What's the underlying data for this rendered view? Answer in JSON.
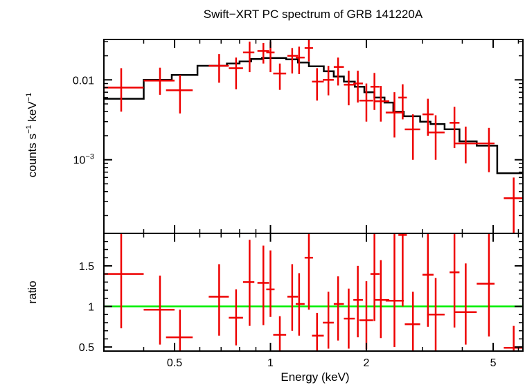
{
  "chart_data": [
    {
      "type": "scatter",
      "panel": "spectrum",
      "title": "Swift−XRT PC spectrum of GRB 141220A",
      "ylabel_parts": [
        "counts s",
        "−1",
        " keV",
        "−1"
      ],
      "xlabel": "",
      "xscale": "log",
      "yscale": "log",
      "xlim": [
        0.3,
        6.2
      ],
      "ylim": [
        0.00012,
        0.032
      ],
      "yticks": [
        {
          "value": 0.01,
          "label": "0.01"
        }
      ],
      "ytick_pow": {
        "value": 0.001,
        "base": "10",
        "exp": "−3"
      },
      "grid": false,
      "colors": {
        "data": "#ee0000",
        "model": "#000000"
      },
      "data_points": [
        {
          "x": 0.34,
          "xlo": 0.3,
          "xhi": 0.4,
          "y": 0.008,
          "yerr": [
            0.004,
            0.014
          ]
        },
        {
          "x": 0.45,
          "xlo": 0.4,
          "xhi": 0.5,
          "y": 0.0098,
          "yerr": [
            0.0065,
            0.0142
          ]
        },
        {
          "x": 0.52,
          "xlo": 0.47,
          "xhi": 0.57,
          "y": 0.0074,
          "yerr": [
            0.0038,
            0.0115
          ]
        },
        {
          "x": 0.69,
          "xlo": 0.64,
          "xhi": 0.74,
          "y": 0.015,
          "yerr": [
            0.0092,
            0.021
          ]
        },
        {
          "x": 0.78,
          "xlo": 0.74,
          "xhi": 0.82,
          "y": 0.014,
          "yerr": [
            0.0076,
            0.019
          ]
        },
        {
          "x": 0.86,
          "xlo": 0.82,
          "xhi": 0.89,
          "y": 0.022,
          "yerr": [
            0.0125,
            0.03
          ]
        },
        {
          "x": 0.95,
          "xlo": 0.91,
          "xhi": 0.99,
          "y": 0.023,
          "yerr": [
            0.016,
            0.029
          ]
        },
        {
          "x": 1.0,
          "xlo": 0.97,
          "xhi": 1.03,
          "y": 0.022,
          "yerr": [
            0.0125,
            0.03
          ]
        },
        {
          "x": 1.07,
          "xlo": 1.02,
          "xhi": 1.12,
          "y": 0.012,
          "yerr": [
            0.0075,
            0.016
          ]
        },
        {
          "x": 1.17,
          "xlo": 1.13,
          "xhi": 1.22,
          "y": 0.02,
          "yerr": [
            0.012,
            0.025
          ]
        },
        {
          "x": 1.23,
          "xlo": 1.2,
          "xhi": 1.28,
          "y": 0.019,
          "yerr": [
            0.0118,
            0.026
          ]
        },
        {
          "x": 1.32,
          "xlo": 1.28,
          "xhi": 1.36,
          "y": 0.025,
          "yerr": [
            0.017,
            0.032
          ]
        },
        {
          "x": 1.4,
          "xlo": 1.35,
          "xhi": 1.47,
          "y": 0.0095,
          "yerr": [
            0.0055,
            0.014
          ]
        },
        {
          "x": 1.52,
          "xlo": 1.46,
          "xhi": 1.58,
          "y": 0.01,
          "yerr": [
            0.0064,
            0.015
          ]
        },
        {
          "x": 1.63,
          "xlo": 1.58,
          "xhi": 1.7,
          "y": 0.0145,
          "yerr": [
            0.0085,
            0.019
          ]
        },
        {
          "x": 1.76,
          "xlo": 1.7,
          "xhi": 1.84,
          "y": 0.0087,
          "yerr": [
            0.0048,
            0.013
          ]
        },
        {
          "x": 1.88,
          "xlo": 1.82,
          "xhi": 1.95,
          "y": 0.009,
          "yerr": [
            0.0052,
            0.013
          ]
        },
        {
          "x": 2.0,
          "xlo": 1.9,
          "xhi": 2.1,
          "y": 0.0055,
          "yerr": [
            0.003,
            0.009
          ]
        },
        {
          "x": 2.12,
          "xlo": 2.06,
          "xhi": 2.2,
          "y": 0.0082,
          "yerr": [
            0.0042,
            0.0122
          ]
        },
        {
          "x": 2.22,
          "xlo": 2.12,
          "xhi": 2.36,
          "y": 0.0054,
          "yerr": [
            0.003,
            0.0084
          ]
        },
        {
          "x": 2.45,
          "xlo": 2.3,
          "xhi": 2.62,
          "y": 0.0039,
          "yerr": [
            0.0019,
            0.007
          ]
        },
        {
          "x": 2.6,
          "xlo": 2.52,
          "xhi": 2.68,
          "y": 0.006,
          "yerr": [
            0.0032,
            0.0088
          ]
        },
        {
          "x": 2.8,
          "xlo": 2.64,
          "xhi": 2.95,
          "y": 0.0024,
          "yerr": [
            0.001,
            0.0037
          ]
        },
        {
          "x": 3.12,
          "xlo": 3.0,
          "xhi": 3.25,
          "y": 0.0037,
          "yerr": [
            0.002,
            0.0058
          ]
        },
        {
          "x": 3.3,
          "xlo": 3.1,
          "xhi": 3.52,
          "y": 0.0022,
          "yerr": [
            0.001,
            0.0036
          ]
        },
        {
          "x": 3.78,
          "xlo": 3.65,
          "xhi": 3.92,
          "y": 0.0029,
          "yerr": [
            0.0014,
            0.0046
          ]
        },
        {
          "x": 4.1,
          "xlo": 3.8,
          "xhi": 4.44,
          "y": 0.0016,
          "yerr": [
            0.0009,
            0.0026
          ]
        },
        {
          "x": 4.85,
          "xlo": 4.44,
          "xhi": 5.05,
          "y": 0.0016,
          "yerr": [
            0.0007,
            0.0025
          ]
        },
        {
          "x": 5.8,
          "xlo": 5.4,
          "xhi": 6.2,
          "y": 0.00033,
          "yerr": [
            0.00012,
            0.0006
          ]
        }
      ],
      "model_steps": [
        {
          "xlo": 0.3,
          "xhi": 0.4,
          "y": 0.0058
        },
        {
          "xlo": 0.4,
          "xhi": 0.49,
          "y": 0.01
        },
        {
          "xlo": 0.49,
          "xhi": 0.59,
          "y": 0.0115
        },
        {
          "xlo": 0.59,
          "xhi": 0.73,
          "y": 0.015
        },
        {
          "xlo": 0.73,
          "xhi": 0.8,
          "y": 0.016
        },
        {
          "xlo": 0.8,
          "xhi": 0.87,
          "y": 0.017
        },
        {
          "xlo": 0.87,
          "xhi": 0.94,
          "y": 0.0182
        },
        {
          "xlo": 0.94,
          "xhi": 1.02,
          "y": 0.0188
        },
        {
          "xlo": 1.02,
          "xhi": 1.12,
          "y": 0.0188
        },
        {
          "xlo": 1.12,
          "xhi": 1.22,
          "y": 0.018
        },
        {
          "xlo": 1.22,
          "xhi": 1.32,
          "y": 0.0165
        },
        {
          "xlo": 1.32,
          "xhi": 1.47,
          "y": 0.0148
        },
        {
          "xlo": 1.47,
          "xhi": 1.58,
          "y": 0.0128
        },
        {
          "xlo": 1.58,
          "xhi": 1.7,
          "y": 0.011
        },
        {
          "xlo": 1.7,
          "xhi": 1.84,
          "y": 0.0095
        },
        {
          "xlo": 1.84,
          "xhi": 1.97,
          "y": 0.0082
        },
        {
          "xlo": 1.97,
          "xhi": 2.12,
          "y": 0.007
        },
        {
          "xlo": 2.12,
          "xhi": 2.28,
          "y": 0.006
        },
        {
          "xlo": 2.28,
          "xhi": 2.43,
          "y": 0.0052
        },
        {
          "xlo": 2.43,
          "xhi": 2.62,
          "y": 0.004
        },
        {
          "xlo": 2.62,
          "xhi": 2.95,
          "y": 0.0035
        },
        {
          "xlo": 2.95,
          "xhi": 3.18,
          "y": 0.003
        },
        {
          "xlo": 3.18,
          "xhi": 3.52,
          "y": 0.0028
        },
        {
          "xlo": 3.52,
          "xhi": 3.92,
          "y": 0.0024
        },
        {
          "xlo": 3.92,
          "xhi": 4.44,
          "y": 0.0017
        },
        {
          "xlo": 4.44,
          "xhi": 5.15,
          "y": 0.0015
        },
        {
          "xlo": 5.15,
          "xhi": 6.2,
          "y": 0.00068
        }
      ]
    },
    {
      "type": "scatter",
      "panel": "ratio",
      "title": "",
      "xlabel": "Energy (keV)",
      "ylabel": "ratio",
      "xscale": "log",
      "yscale": "linear",
      "xlim": [
        0.3,
        6.2
      ],
      "ylim": [
        0.45,
        1.9
      ],
      "xticks": [
        {
          "value": 0.5,
          "label": "0.5"
        },
        {
          "value": 1,
          "label": "1"
        },
        {
          "value": 2,
          "label": "2"
        },
        {
          "value": 5,
          "label": "5"
        }
      ],
      "yticks": [
        {
          "value": 0.5,
          "label": "0.5"
        },
        {
          "value": 1,
          "label": "1"
        },
        {
          "value": 1.5,
          "label": "1.5"
        }
      ],
      "reference_line": 1,
      "grid": false,
      "colors": {
        "data": "#ee0000",
        "reference": "#00ee00"
      },
      "data_points": [
        {
          "x": 0.34,
          "xlo": 0.3,
          "xhi": 0.4,
          "y": 1.4,
          "yerr": [
            0.73,
            1.9
          ]
        },
        {
          "x": 0.45,
          "xlo": 0.4,
          "xhi": 0.5,
          "y": 0.96,
          "yerr": [
            0.53,
            1.38
          ]
        },
        {
          "x": 0.52,
          "xlo": 0.47,
          "xhi": 0.57,
          "y": 0.62,
          "yerr": [
            0.45,
            0.96
          ]
        },
        {
          "x": 0.69,
          "xlo": 0.64,
          "xhi": 0.74,
          "y": 1.12,
          "yerr": [
            0.64,
            1.52
          ]
        },
        {
          "x": 0.78,
          "xlo": 0.74,
          "xhi": 0.82,
          "y": 0.86,
          "yerr": [
            0.52,
            1.21
          ]
        },
        {
          "x": 0.86,
          "xlo": 0.82,
          "xhi": 0.89,
          "y": 1.3,
          "yerr": [
            0.76,
            1.82
          ]
        },
        {
          "x": 0.95,
          "xlo": 0.91,
          "xhi": 0.99,
          "y": 1.29,
          "yerr": [
            0.77,
            1.75
          ]
        },
        {
          "x": 1.0,
          "xlo": 0.97,
          "xhi": 1.03,
          "y": 1.21,
          "yerr": [
            0.87,
            1.69
          ]
        },
        {
          "x": 1.07,
          "xlo": 1.02,
          "xhi": 1.12,
          "y": 0.65,
          "yerr": [
            0.45,
            0.88
          ]
        },
        {
          "x": 1.17,
          "xlo": 1.13,
          "xhi": 1.22,
          "y": 1.12,
          "yerr": [
            0.7,
            1.52
          ]
        },
        {
          "x": 1.23,
          "xlo": 1.2,
          "xhi": 1.28,
          "y": 1.03,
          "yerr": [
            0.64,
            1.41
          ]
        },
        {
          "x": 1.32,
          "xlo": 1.28,
          "xhi": 1.36,
          "y": 1.6,
          "yerr": [
            0.96,
            1.9
          ]
        },
        {
          "x": 1.4,
          "xlo": 1.35,
          "xhi": 1.47,
          "y": 0.64,
          "yerr": [
            0.45,
            0.92
          ]
        },
        {
          "x": 1.52,
          "xlo": 1.46,
          "xhi": 1.58,
          "y": 0.8,
          "yerr": [
            0.48,
            1.18
          ]
        },
        {
          "x": 1.63,
          "xlo": 1.58,
          "xhi": 1.7,
          "y": 1.03,
          "yerr": [
            0.58,
            1.37
          ]
        },
        {
          "x": 1.76,
          "xlo": 1.7,
          "xhi": 1.84,
          "y": 0.85,
          "yerr": [
            0.48,
            1.22
          ]
        },
        {
          "x": 1.88,
          "xlo": 1.82,
          "xhi": 1.95,
          "y": 1.08,
          "yerr": [
            0.62,
            1.5
          ]
        },
        {
          "x": 2.0,
          "xlo": 1.9,
          "xhi": 2.1,
          "y": 0.83,
          "yerr": [
            0.47,
            1.31
          ]
        },
        {
          "x": 2.12,
          "xlo": 2.06,
          "xhi": 2.2,
          "y": 1.4,
          "yerr": [
            0.82,
            1.9
          ]
        },
        {
          "x": 2.22,
          "xlo": 2.12,
          "xhi": 2.36,
          "y": 1.08,
          "yerr": [
            0.61,
            1.57
          ]
        },
        {
          "x": 2.45,
          "xlo": 2.3,
          "xhi": 2.62,
          "y": 1.07,
          "yerr": [
            0.5,
            1.9
          ]
        },
        {
          "x": 2.6,
          "xlo": 2.52,
          "xhi": 2.68,
          "y": 1.88,
          "yerr": [
            1.0,
            1.9
          ]
        },
        {
          "x": 2.8,
          "xlo": 2.64,
          "xhi": 2.95,
          "y": 0.78,
          "yerr": [
            0.45,
            1.18
          ]
        },
        {
          "x": 3.12,
          "xlo": 3.0,
          "xhi": 3.25,
          "y": 1.39,
          "yerr": [
            0.75,
            1.9
          ]
        },
        {
          "x": 3.3,
          "xlo": 3.1,
          "xhi": 3.52,
          "y": 0.9,
          "yerr": [
            0.45,
            1.35
          ]
        },
        {
          "x": 3.78,
          "xlo": 3.65,
          "xhi": 3.92,
          "y": 1.42,
          "yerr": [
            0.74,
            1.9
          ]
        },
        {
          "x": 4.1,
          "xlo": 3.8,
          "xhi": 4.44,
          "y": 0.93,
          "yerr": [
            0.53,
            1.53
          ]
        },
        {
          "x": 4.85,
          "xlo": 4.44,
          "xhi": 5.05,
          "y": 1.28,
          "yerr": [
            0.63,
            1.9
          ]
        },
        {
          "x": 5.8,
          "xlo": 5.4,
          "xhi": 6.2,
          "y": 0.49,
          "yerr": [
            0.45,
            0.76
          ]
        }
      ]
    }
  ]
}
